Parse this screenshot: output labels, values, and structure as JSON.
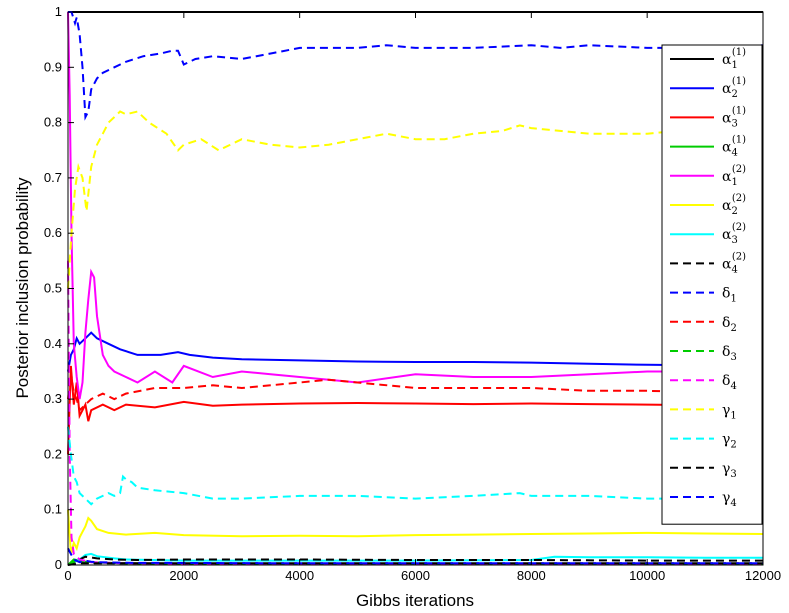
{
  "chart_data": {
    "type": "line",
    "title": "",
    "xlabel": "Gibbs iterations",
    "ylabel": "Posterior inclusion probability",
    "xlim": [
      0,
      12000
    ],
    "ylim": [
      0,
      1
    ],
    "xticks": [
      "0",
      "2000",
      "4000",
      "6000",
      "8000",
      "10000",
      "12000"
    ],
    "yticks": [
      "0",
      "0.1",
      "0.2",
      "0.3",
      "0.4",
      "0.5",
      "0.6",
      "0.7",
      "0.8",
      "0.9",
      "1"
    ],
    "grid": false,
    "legend_position": "right",
    "series": [
      {
        "name": "α1(1)",
        "sym": "α",
        "sub": "1",
        "sup": "(1)",
        "color": "#000000",
        "dash": "solid",
        "x": [
          0,
          12000
        ],
        "y": [
          1.0,
          1.0
        ]
      },
      {
        "name": "α2(1)",
        "sym": "α",
        "sub": "2",
        "sup": "(1)",
        "color": "#0000ff",
        "dash": "solid",
        "x": [
          0,
          50,
          100,
          150,
          200,
          300,
          400,
          500,
          700,
          900,
          1200,
          1600,
          1900,
          2100,
          2500,
          3000,
          4000,
          5000,
          6000,
          7000,
          8000,
          9000,
          10000,
          11000,
          12000
        ],
        "y": [
          0.35,
          0.38,
          0.39,
          0.41,
          0.4,
          0.41,
          0.42,
          0.41,
          0.4,
          0.39,
          0.38,
          0.38,
          0.385,
          0.38,
          0.375,
          0.372,
          0.37,
          0.368,
          0.367,
          0.367,
          0.366,
          0.364,
          0.362,
          0.361,
          0.36
        ]
      },
      {
        "name": "α3(1)",
        "sym": "α",
        "sub": "3",
        "sup": "(1)",
        "color": "#ff0000",
        "dash": "solid",
        "x": [
          0,
          50,
          100,
          150,
          200,
          300,
          350,
          400,
          600,
          800,
          1000,
          1500,
          2000,
          2500,
          3000,
          4000,
          5000,
          6000,
          7000,
          8000,
          9000,
          10000,
          11000,
          12000
        ],
        "y": [
          0.2,
          0.36,
          0.29,
          0.33,
          0.27,
          0.29,
          0.26,
          0.28,
          0.29,
          0.28,
          0.29,
          0.285,
          0.295,
          0.288,
          0.29,
          0.292,
          0.293,
          0.292,
          0.291,
          0.292,
          0.291,
          0.29,
          0.289,
          0.288
        ]
      },
      {
        "name": "α4(1)",
        "sym": "α",
        "sub": "4",
        "sup": "(1)",
        "color": "#00cc00",
        "dash": "solid",
        "x": [
          0,
          100,
          300,
          600,
          1000,
          2000,
          4000,
          6000,
          8000,
          10000,
          12000
        ],
        "y": [
          0.0,
          0.01,
          0.006,
          0.004,
          0.003,
          0.002,
          0.002,
          0.002,
          0.002,
          0.002,
          0.002
        ]
      },
      {
        "name": "α1(2)",
        "sym": "α",
        "sub": "1",
        "sup": "(2)",
        "color": "#ff00ff",
        "dash": "solid",
        "x": [
          0,
          30,
          60,
          100,
          150,
          200,
          250,
          300,
          350,
          400,
          450,
          500,
          600,
          700,
          800,
          1000,
          1200,
          1500,
          1800,
          2000,
          2500,
          3000,
          3500,
          4000,
          5000,
          6000,
          7000,
          8000,
          9000,
          10000,
          11000,
          12000
        ],
        "y": [
          1.0,
          0.85,
          0.6,
          0.4,
          0.34,
          0.3,
          0.33,
          0.42,
          0.48,
          0.53,
          0.52,
          0.45,
          0.38,
          0.36,
          0.35,
          0.34,
          0.33,
          0.35,
          0.33,
          0.36,
          0.34,
          0.35,
          0.345,
          0.34,
          0.33,
          0.345,
          0.34,
          0.34,
          0.345,
          0.35,
          0.35,
          0.345
        ]
      },
      {
        "name": "α2(2)",
        "sym": "α",
        "sub": "2",
        "sup": "(2)",
        "color": "#ffff00",
        "dash": "solid",
        "x": [
          0,
          50,
          100,
          150,
          200,
          250,
          300,
          350,
          400,
          500,
          700,
          1000,
          1500,
          2000,
          3000,
          4000,
          5000,
          6000,
          7000,
          8000,
          9000,
          10000,
          11000,
          12000
        ],
        "y": [
          0.1,
          0.02,
          0.04,
          0.03,
          0.05,
          0.06,
          0.07,
          0.085,
          0.08,
          0.065,
          0.058,
          0.055,
          0.058,
          0.054,
          0.052,
          0.053,
          0.052,
          0.054,
          0.055,
          0.056,
          0.057,
          0.058,
          0.057,
          0.056
        ]
      },
      {
        "name": "α3(2)",
        "sym": "α",
        "sub": "3",
        "sup": "(2)",
        "color": "#00ffff",
        "dash": "solid",
        "x": [
          0,
          100,
          200,
          300,
          400,
          500,
          800,
          1000,
          2000,
          4000,
          6000,
          8000,
          8400,
          9000,
          10000,
          11000,
          12000
        ],
        "y": [
          0.0,
          0.005,
          0.01,
          0.018,
          0.02,
          0.016,
          0.012,
          0.01,
          0.008,
          0.008,
          0.008,
          0.009,
          0.015,
          0.014,
          0.014,
          0.013,
          0.013
        ]
      },
      {
        "name": "α4(2)",
        "sym": "α",
        "sub": "4",
        "sup": "(2)",
        "color": "#000000",
        "dash": "dashed",
        "x": [
          0,
          100,
          200,
          300,
          500,
          800,
          1200,
          2000,
          4000,
          6000,
          8000,
          10000,
          12000
        ],
        "y": [
          0.0,
          0.005,
          0.01,
          0.015,
          0.012,
          0.01,
          0.009,
          0.01,
          0.01,
          0.009,
          0.009,
          0.008,
          0.008
        ]
      },
      {
        "name": "δ1",
        "sym": "δ",
        "sub": "1",
        "sup": "",
        "color": "#0000ff",
        "dash": "dashed",
        "x": [
          0,
          60,
          120,
          150,
          200,
          250,
          300,
          350,
          400,
          500,
          600,
          800,
          1000,
          1300,
          1600,
          1800,
          1900,
          2000,
          2200,
          2500,
          3000,
          3500,
          4000,
          5000,
          5500,
          6000,
          7000,
          8000,
          8500,
          9000,
          10000,
          11000,
          12000
        ],
        "y": [
          1.0,
          1.0,
          0.98,
          0.99,
          0.96,
          0.9,
          0.81,
          0.82,
          0.86,
          0.88,
          0.89,
          0.9,
          0.91,
          0.92,
          0.925,
          0.93,
          0.93,
          0.905,
          0.915,
          0.92,
          0.915,
          0.925,
          0.935,
          0.935,
          0.94,
          0.935,
          0.935,
          0.94,
          0.935,
          0.94,
          0.935,
          0.935,
          0.94
        ]
      },
      {
        "name": "δ2",
        "sym": "δ",
        "sub": "2",
        "sup": "",
        "color": "#ff0000",
        "dash": "dashed",
        "x": [
          0,
          50,
          100,
          150,
          200,
          300,
          400,
          600,
          800,
          1000,
          1500,
          2000,
          2500,
          3000,
          3500,
          4000,
          4500,
          5000,
          6000,
          7000,
          8000,
          9000,
          10000,
          11000,
          12000
        ],
        "y": [
          0.3,
          0.35,
          0.31,
          0.3,
          0.28,
          0.29,
          0.3,
          0.31,
          0.3,
          0.31,
          0.32,
          0.32,
          0.325,
          0.32,
          0.325,
          0.33,
          0.335,
          0.33,
          0.32,
          0.32,
          0.32,
          0.315,
          0.315,
          0.312,
          0.31
        ]
      },
      {
        "name": "δ3",
        "sym": "δ",
        "sub": "3",
        "sup": "",
        "color": "#00cc00",
        "dash": "dashed",
        "x": [
          0,
          100,
          400,
          1000,
          4000,
          8000,
          12000
        ],
        "y": [
          0.0,
          0.006,
          0.004,
          0.003,
          0.002,
          0.002,
          0.002
        ]
      },
      {
        "name": "δ4",
        "sym": "δ",
        "sub": "4",
        "sup": "",
        "color": "#ff00ff",
        "dash": "dashed",
        "x": [
          0,
          30,
          60,
          100,
          200,
          400,
          1000,
          4000,
          8000,
          12000
        ],
        "y": [
          0.55,
          0.2,
          0.05,
          0.02,
          0.01,
          0.005,
          0.003,
          0.002,
          0.002,
          0.002
        ]
      },
      {
        "name": "γ1",
        "sym": "γ",
        "sub": "1",
        "sup": "",
        "color": "#ffff00",
        "dash": "dashed",
        "x": [
          0,
          60,
          120,
          180,
          250,
          320,
          400,
          500,
          600,
          700,
          800,
          900,
          1000,
          1200,
          1400,
          1700,
          1900,
          2000,
          2300,
          2600,
          3000,
          3500,
          4000,
          4500,
          5000,
          5500,
          6000,
          6500,
          7000,
          7500,
          7800,
          8000,
          9000,
          10000,
          11000,
          12000
        ],
        "y": [
          0.5,
          0.6,
          0.68,
          0.72,
          0.7,
          0.64,
          0.72,
          0.76,
          0.78,
          0.8,
          0.81,
          0.82,
          0.815,
          0.82,
          0.8,
          0.78,
          0.75,
          0.76,
          0.77,
          0.75,
          0.77,
          0.76,
          0.755,
          0.76,
          0.77,
          0.78,
          0.77,
          0.77,
          0.78,
          0.785,
          0.795,
          0.79,
          0.78,
          0.78,
          0.79,
          0.79
        ]
      },
      {
        "name": "γ2",
        "sym": "γ",
        "sub": "2",
        "sup": "",
        "color": "#00ffff",
        "dash": "dashed",
        "x": [
          0,
          50,
          100,
          150,
          200,
          300,
          400,
          500,
          600,
          700,
          800,
          900,
          950,
          1000,
          1100,
          1200,
          1500,
          2000,
          2500,
          3000,
          4000,
          5000,
          6000,
          7000,
          7800,
          8000,
          9000,
          10000,
          11000,
          12000
        ],
        "y": [
          0.25,
          0.2,
          0.16,
          0.15,
          0.13,
          0.12,
          0.11,
          0.12,
          0.125,
          0.13,
          0.125,
          0.13,
          0.16,
          0.155,
          0.15,
          0.14,
          0.135,
          0.13,
          0.12,
          0.12,
          0.125,
          0.125,
          0.12,
          0.125,
          0.13,
          0.125,
          0.125,
          0.12,
          0.12,
          0.125
        ]
      },
      {
        "name": "γ3",
        "sym": "γ",
        "sub": "3",
        "sup": "",
        "color": "#000000",
        "dash": "dashed",
        "x": [
          0,
          200,
          1000,
          4000,
          8000,
          12000
        ],
        "y": [
          0.0,
          0.003,
          0.003,
          0.003,
          0.003,
          0.003
        ]
      },
      {
        "name": "γ4",
        "sym": "γ",
        "sub": "4",
        "sup": "",
        "color": "#0000ff",
        "dash": "dashed",
        "x": [
          0,
          100,
          200,
          300,
          400,
          500,
          1000,
          4000,
          8000,
          12000
        ],
        "y": [
          0.03,
          0.01,
          0.005,
          0.008,
          0.006,
          0.005,
          0.004,
          0.003,
          0.003,
          0.003
        ]
      }
    ]
  }
}
